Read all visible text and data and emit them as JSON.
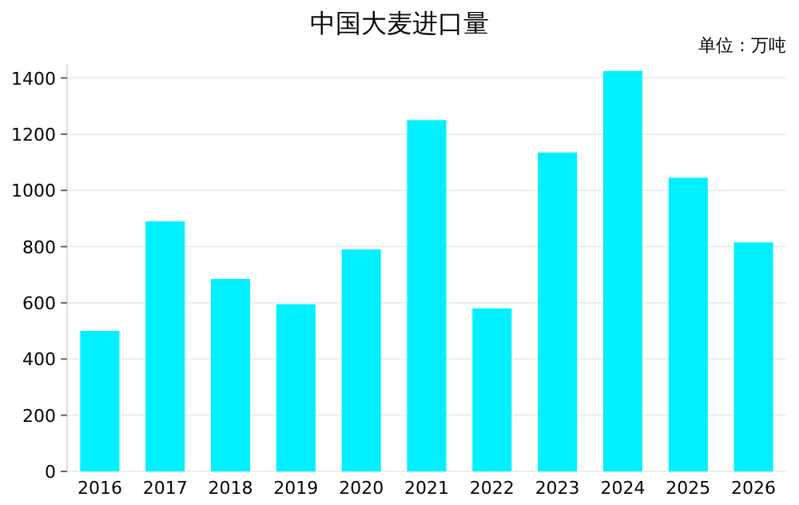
{
  "chart_data": {
    "type": "bar",
    "title": "中国大麦进口量",
    "annotations": [
      "单位：万吨"
    ],
    "categories": [
      "2016",
      "2017",
      "2018",
      "2019",
      "2020",
      "2021",
      "2022",
      "2023",
      "2024",
      "2025",
      "2026"
    ],
    "values": [
      500,
      890,
      685,
      595,
      790,
      1250,
      580,
      1135,
      1425,
      1045,
      815
    ],
    "color": "#00f0ff",
    "ylim": [
      0,
      1450
    ],
    "yticks": [
      0,
      200,
      400,
      600,
      800,
      1000,
      1200,
      1400
    ],
    "grid": "y"
  }
}
